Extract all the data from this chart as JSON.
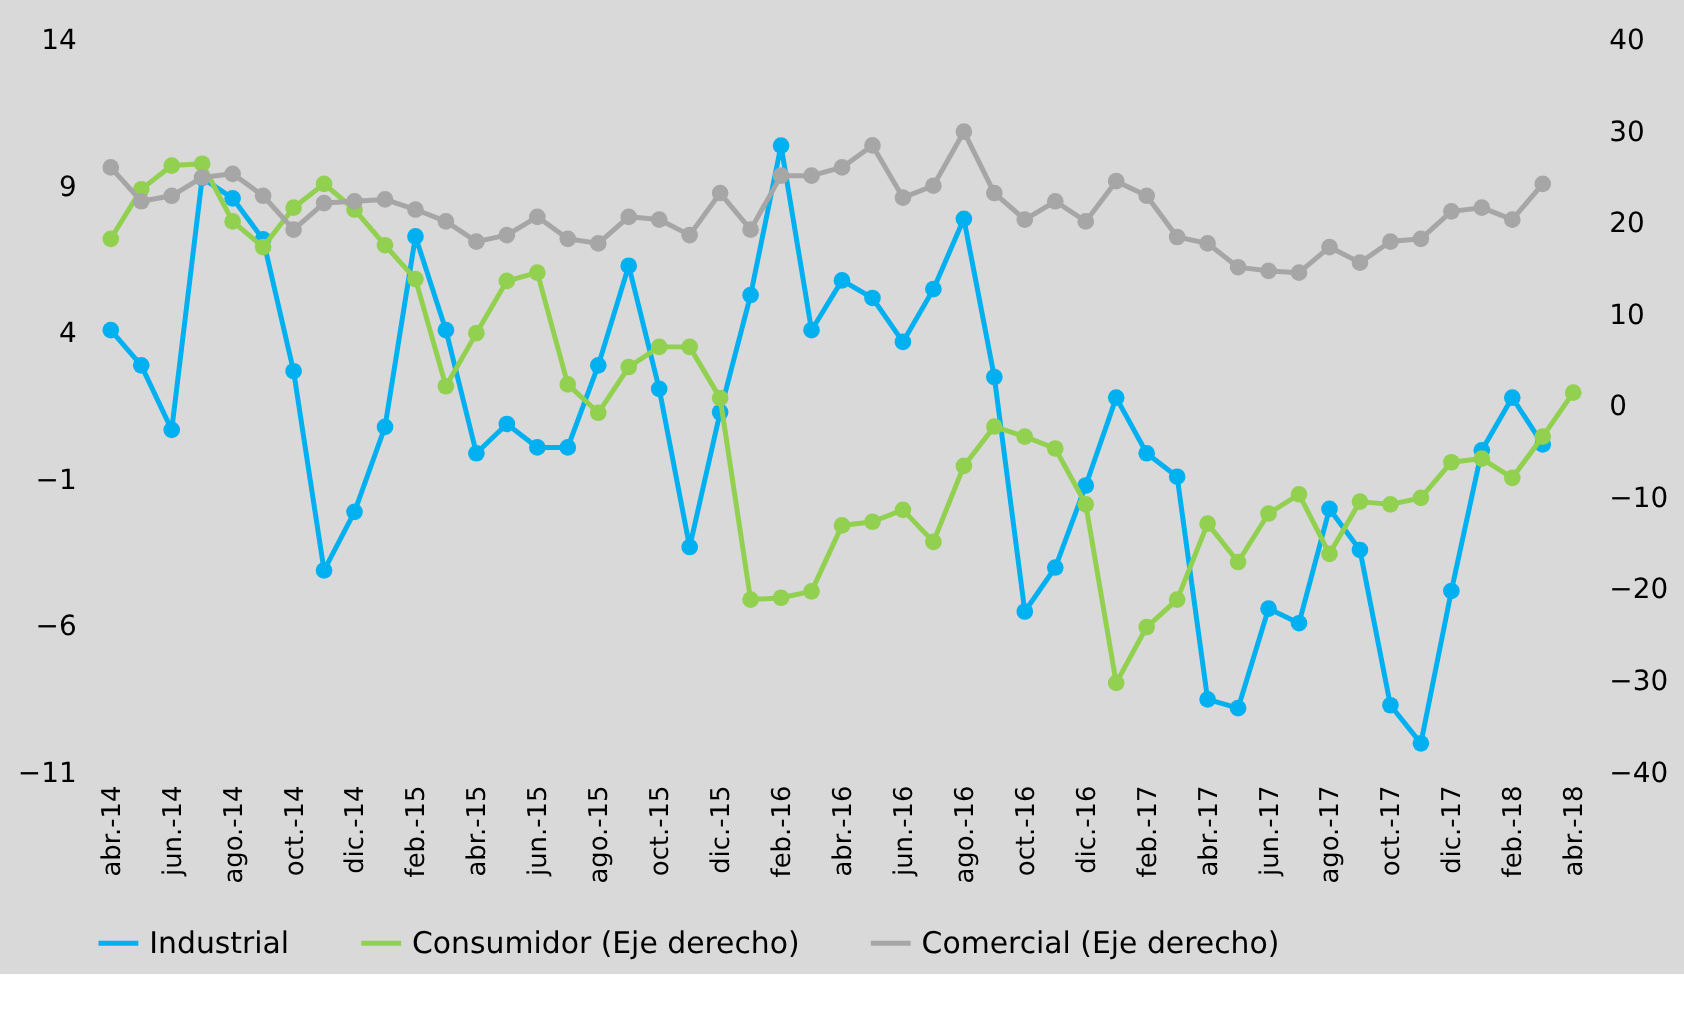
{
  "chart_data": {
    "type": "line",
    "categories": [
      "abr.-14",
      null,
      "jun.-14",
      null,
      "ago.-14",
      null,
      "oct.-14",
      null,
      "dic.-14",
      null,
      "feb.-15",
      null,
      "abr.-15",
      null,
      "jun.-15",
      null,
      "ago.-15",
      null,
      "oct.-15",
      null,
      "dic.-15",
      null,
      "feb.-16",
      null,
      "abr.-16",
      null,
      "jun.-16",
      null,
      "ago.-16",
      null,
      "oct.-16",
      null,
      "dic.-16",
      null,
      "feb.-17",
      null,
      "abr.-17",
      null,
      "jun.-17",
      null,
      "ago.-17",
      null,
      "oct.-17",
      null,
      "dic.-17",
      null,
      "feb.-18",
      null,
      "abr.-18"
    ],
    "series": [
      {
        "name": "Industrial",
        "color": "#00b0f0",
        "values": [
          4.1,
          2.9,
          0.7,
          9.3,
          8.6,
          7.2,
          2.7,
          -4.1,
          -2.1,
          0.8,
          7.3,
          4.1,
          -0.1,
          0.9,
          0.1,
          0.1,
          2.9,
          6.3,
          2.1,
          -3.3,
          1.3,
          5.3,
          10.4,
          4.1,
          5.8,
          5.2,
          3.7,
          5.5,
          7.9,
          2.5,
          -5.5,
          -4.0,
          -1.2,
          1.8,
          -0.1,
          -0.9,
          -8.5,
          -8.8,
          -5.4,
          -5.9,
          -2.0,
          -3.4,
          -8.7,
          -10.0,
          -4.8,
          0.0,
          1.8,
          0.2,
          null
        ]
      },
      {
        "name": "Consumidor (Eje derecho)",
        "color": "#92d050",
        "axis": "y2",
        "values": [
          18.3,
          23.7,
          26.3,
          26.5,
          20.2,
          17.4,
          21.7,
          24.3,
          21.5,
          17.6,
          13.9,
          2.2,
          8.0,
          13.7,
          14.6,
          2.4,
          -0.7,
          4.3,
          6.5,
          6.5,
          0.9,
          -21.1,
          -20.9,
          -20.2,
          -13.0,
          -12.6,
          -11.3,
          -14.8,
          -6.5,
          -2.2,
          -3.3,
          -4.6,
          -10.7,
          -30.2,
          -24.1,
          -21.1,
          -12.8,
          -17.0,
          -11.7,
          -9.6,
          -16.1,
          -10.4,
          -10.7,
          -10.0,
          -6.1,
          -5.7,
          -7.8,
          -3.3,
          1.5
        ]
      },
      {
        "name": "Comercial (Eje derecho)",
        "color": "#a6a6a6",
        "axis": "y2",
        "values": [
          26.1,
          22.4,
          23.0,
          25.0,
          25.4,
          23.0,
          19.3,
          22.2,
          22.4,
          22.6,
          21.5,
          20.2,
          18.0,
          18.7,
          20.7,
          18.3,
          17.8,
          20.7,
          20.4,
          18.7,
          23.3,
          19.3,
          25.2,
          25.2,
          26.1,
          28.5,
          22.8,
          24.1,
          30.0,
          23.3,
          20.4,
          22.4,
          20.2,
          24.6,
          23.0,
          18.5,
          17.8,
          15.2,
          14.8,
          14.6,
          17.4,
          15.7,
          18.0,
          18.3,
          21.3,
          21.7,
          20.4,
          24.3,
          null
        ]
      }
    ],
    "ylim": [
      -11,
      14
    ],
    "yticks": [
      14,
      9,
      4,
      -1,
      -6,
      -11
    ],
    "y2lim": [
      -40,
      40
    ],
    "y2ticks": [
      40,
      30,
      20,
      10,
      0,
      -10,
      -20,
      -30,
      -40
    ],
    "legend": "bottom",
    "marker": "circle",
    "line_style": "solid"
  }
}
